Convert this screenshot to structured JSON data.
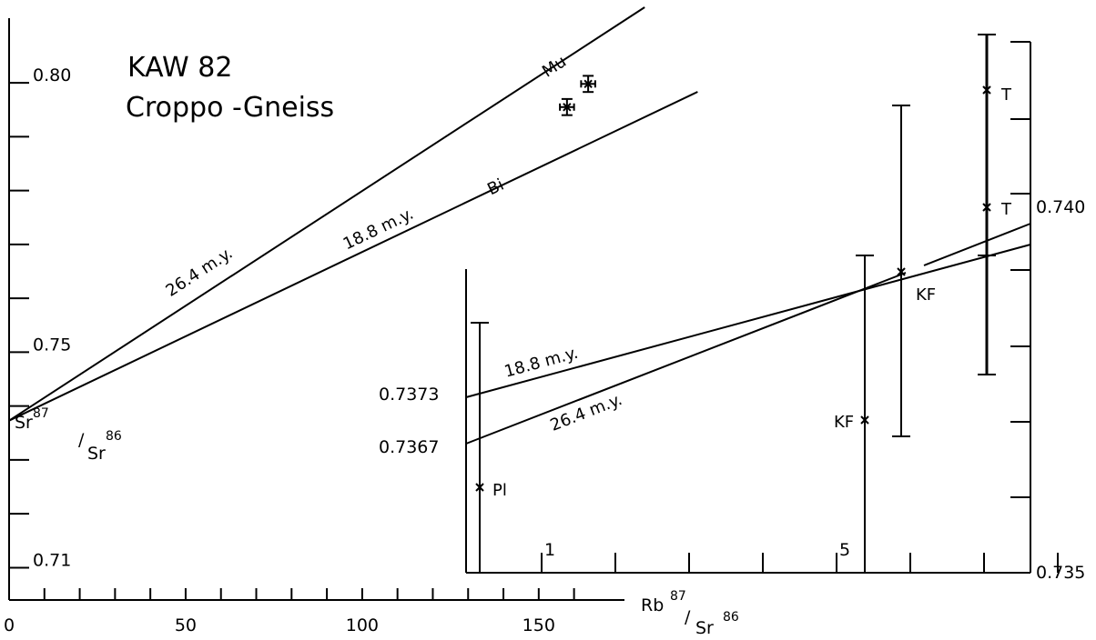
{
  "chart_data": {
    "type": "scatter",
    "title": "KAW 82",
    "subtitle": "Croppo -Gneiss",
    "main": {
      "xlabel": {
        "base1": "Rb",
        "sup1": "87",
        "slash": "/",
        "base2": "Sr",
        "sup2": "86"
      },
      "ylabel": {
        "base1": "Sr",
        "sup1": "87",
        "slash": "/",
        "base2": "Sr",
        "sup2": "86"
      },
      "xlim": [
        0,
        165
      ],
      "ylim": [
        0.704,
        0.812
      ],
      "x_ticks": [
        0,
        10,
        20,
        30,
        40,
        50,
        60,
        70,
        80,
        90,
        100,
        110,
        120,
        130,
        140,
        150,
        160
      ],
      "x_tick_labels": [
        {
          "value": 0,
          "label": "0"
        },
        {
          "value": 50,
          "label": "50"
        },
        {
          "value": 100,
          "label": "100"
        },
        {
          "value": 150,
          "label": "150"
        }
      ],
      "y_ticks": [
        0.71,
        0.72,
        0.73,
        0.74,
        0.75,
        0.76,
        0.77,
        0.78,
        0.79,
        0.8
      ],
      "y_tick_labels": [
        {
          "value": 0.71,
          "label": "0.71"
        },
        {
          "value": 0.75,
          "label": "0.75"
        },
        {
          "value": 0.8,
          "label": "0.80"
        }
      ],
      "initial_ratio": 0.7373,
      "isochrons": [
        {
          "label": "Mu",
          "age_label": "26.4 m.y.",
          "x_end": 180
        },
        {
          "label": "Bi",
          "age_label": "18.8 m.y.",
          "x_end": 195
        }
      ],
      "points": [
        {
          "x": 158,
          "y": 0.7955,
          "xerr": 2,
          "yerr": 0.0015
        },
        {
          "x": 164,
          "y": 0.7998,
          "xerr": 2,
          "yerr": 0.0015
        }
      ]
    },
    "inset": {
      "xlim": [
        -0.8,
        8.5
      ],
      "ylim": [
        0.735,
        0.741
      ],
      "x_tick_labels": [
        {
          "value": 1,
          "label": "1"
        },
        {
          "value": 5,
          "label": "5"
        }
      ],
      "y_tick_labels": [
        {
          "value": 0.735,
          "label": "0.735"
        },
        {
          "value": 0.74,
          "label": "0.740"
        }
      ],
      "y_intercept_labels": [
        {
          "value": 0.7373,
          "label": "0.7373"
        },
        {
          "value": 0.7367,
          "label": "0.7367"
        }
      ],
      "isochrons": [
        {
          "age_label": "18.8 m.y.",
          "intercept": 0.7373,
          "slope": 0.000267
        },
        {
          "age_label": "26.4 m.y.",
          "intercept": 0.7367,
          "slope": 0.000375
        }
      ],
      "points": [
        {
          "label": "Pl",
          "x": 0.0,
          "y": 0.7361,
          "yerr_low": 0.0,
          "yerr_high": 0.0016
        },
        {
          "label": "KF",
          "x": 6.0,
          "y": 0.73695,
          "yerr_low": 0.00292,
          "yerr_high": 0.00128
        },
        {
          "label": "KF",
          "x": 6.6,
          "y": 0.7393,
          "yerr_low": 0.0011,
          "yerr_high": 0.0011
        },
        {
          "label": "T",
          "x": 8.0,
          "y": 0.74,
          "yerr_low": 0.0011,
          "yerr_high": 0.0011
        },
        {
          "label": "T",
          "x": 8.0,
          "y": 0.74082,
          "yerr_low": 0.0011,
          "yerr_high": 0.0011
        }
      ]
    }
  }
}
